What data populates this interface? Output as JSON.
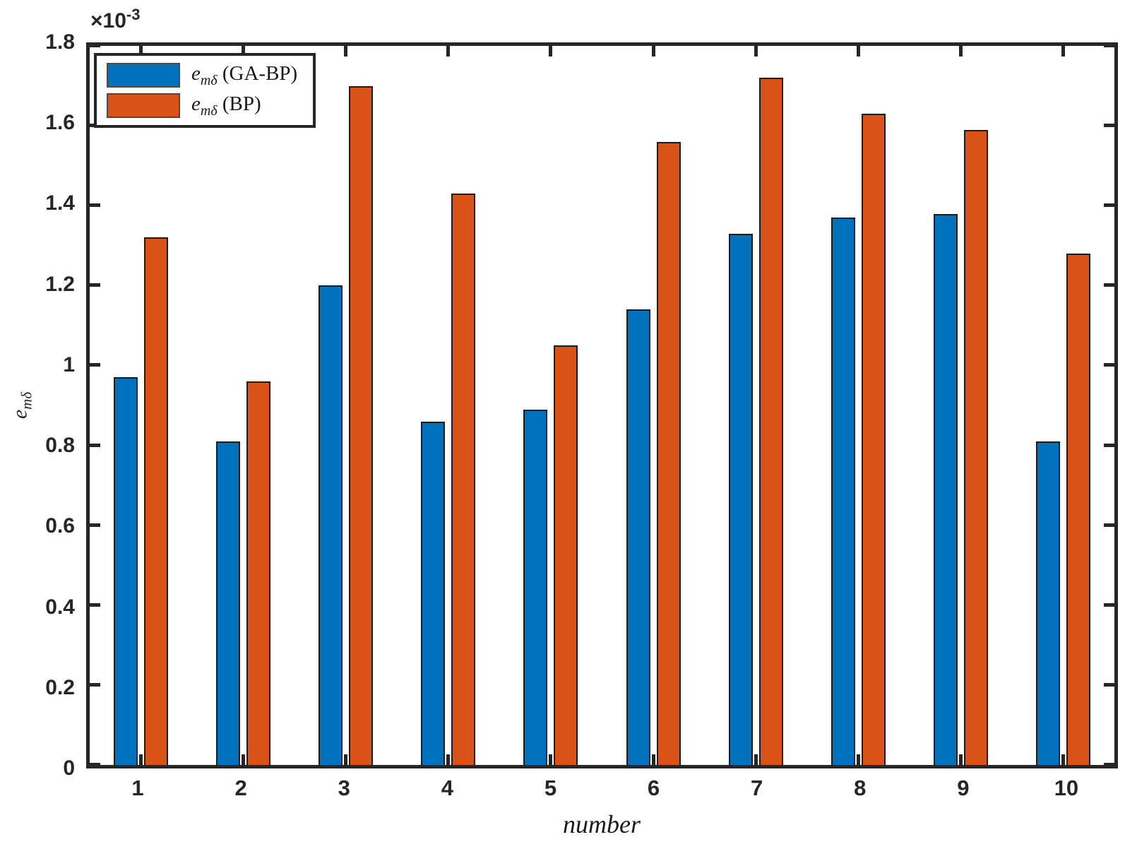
{
  "figure": {
    "offset_label": {
      "prefix": "×10",
      "exponent": "-3"
    },
    "ylabel": {
      "base": "e",
      "subscript": "mδ"
    },
    "xlabel": "number"
  },
  "legend": {
    "entries": [
      {
        "base": "e",
        "subscript": "mδ",
        "suffix": " (GA-BP)"
      },
      {
        "base": "e",
        "subscript": "mδ",
        "suffix": " (BP)"
      }
    ]
  },
  "chart_data": {
    "type": "bar",
    "title": "",
    "xlabel": "number",
    "ylabel": "e_mδ",
    "scale_note": "y values are ×10^-3",
    "categories": [
      "1",
      "2",
      "3",
      "4",
      "5",
      "6",
      "7",
      "8",
      "9",
      "10"
    ],
    "series": [
      {
        "name": "e_mδ (GA-BP)",
        "color": "#0072BD",
        "values": [
          0.97,
          0.81,
          1.2,
          0.86,
          0.89,
          1.14,
          1.33,
          1.37,
          1.38,
          0.81
        ]
      },
      {
        "name": "e_mδ (BP)",
        "color": "#D95319",
        "values": [
          1.32,
          0.96,
          1.7,
          1.43,
          1.05,
          1.56,
          1.72,
          1.63,
          1.59,
          1.28
        ]
      }
    ],
    "ylim": [
      0,
      1.8
    ],
    "yticks": [
      0,
      0.2,
      0.4,
      0.6,
      0.8,
      1,
      1.2,
      1.4,
      1.6,
      1.8
    ],
    "ytick_labels": [
      "0",
      "0.2",
      "0.4",
      "0.6",
      "0.8",
      "1",
      "1.2",
      "1.4",
      "1.6",
      "1.8"
    ],
    "grid": false,
    "legend_position": "top-left",
    "axis_color": "#262626",
    "bar_edge_color": "#1c1c1c",
    "background": "#ffffff"
  }
}
